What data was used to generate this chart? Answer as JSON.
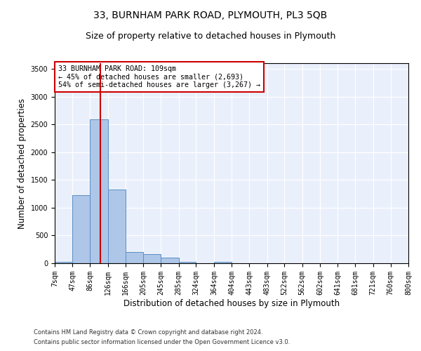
{
  "title_line1": "33, BURNHAM PARK ROAD, PLYMOUTH, PL3 5QB",
  "title_line2": "Size of property relative to detached houses in Plymouth",
  "xlabel": "Distribution of detached houses by size in Plymouth",
  "ylabel": "Number of detached properties",
  "footer_line1": "Contains HM Land Registry data © Crown copyright and database right 2024.",
  "footer_line2": "Contains public sector information licensed under the Open Government Licence v3.0.",
  "annotation_line1": "33 BURNHAM PARK ROAD: 109sqm",
  "annotation_line2": "← 45% of detached houses are smaller (2,693)",
  "annotation_line3": "54% of semi-detached houses are larger (3,267) →",
  "property_size": 109,
  "bin_edges": [
    7,
    47,
    86,
    126,
    166,
    205,
    245,
    285,
    324,
    364,
    404,
    443,
    483,
    522,
    562,
    602,
    641,
    681,
    721,
    760,
    800
  ],
  "bar_values": [
    30,
    1230,
    2590,
    1330,
    200,
    170,
    100,
    30,
    5,
    30,
    0,
    0,
    0,
    0,
    0,
    0,
    0,
    0,
    0,
    0
  ],
  "bar_color": "#aec6e8",
  "bar_edgecolor": "#5a8fc4",
  "line_color": "#cc0000",
  "plot_background": "#eaf0fb",
  "ylim": [
    0,
    3600
  ],
  "yticks": [
    0,
    500,
    1000,
    1500,
    2000,
    2500,
    3000,
    3500
  ],
  "grid_color": "#ffffff",
  "annotation_box_color": "#cc0000",
  "title_fontsize": 10,
  "subtitle_fontsize": 9,
  "axis_label_fontsize": 8.5,
  "tick_fontsize": 7
}
